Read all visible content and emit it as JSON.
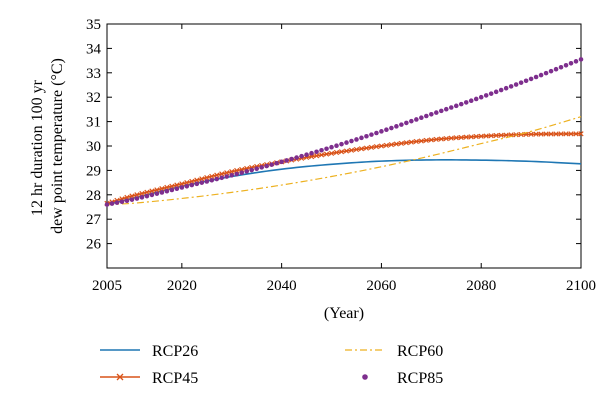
{
  "chart_data": {
    "type": "line",
    "xlabel": "(Year)",
    "ylabel": [
      "12 hr duration 100 yr",
      "dew point temperature (°C)"
    ],
    "xlim": [
      2005,
      2100
    ],
    "ylim": [
      25,
      35
    ],
    "xticks": [
      2005,
      2020,
      2040,
      2060,
      2080,
      2100
    ],
    "yticks": [
      26,
      27,
      28,
      29,
      30,
      31,
      32,
      33,
      34,
      35
    ],
    "grid": false,
    "legend_position": "bottom",
    "series": [
      {
        "name": "RCP26",
        "style": "solid",
        "marker": "none",
        "color": "#1f77b4",
        "x": [
          2005,
          2010,
          2020,
          2030,
          2040,
          2050,
          2060,
          2070,
          2080,
          2090,
          2100
        ],
        "y": [
          27.6,
          27.85,
          28.35,
          28.75,
          29.05,
          29.25,
          29.38,
          29.43,
          29.42,
          29.37,
          29.27
        ]
      },
      {
        "name": "RCP45",
        "style": "solid",
        "marker": "x",
        "color": "#d95319",
        "x": [
          2005,
          2010,
          2020,
          2030,
          2040,
          2050,
          2060,
          2070,
          2080,
          2090,
          2100
        ],
        "y": [
          27.65,
          27.95,
          28.45,
          28.95,
          29.35,
          29.7,
          30.0,
          30.25,
          30.4,
          30.48,
          30.5
        ]
      },
      {
        "name": "RCP60",
        "style": "dashdot",
        "marker": "none",
        "color": "#edb120",
        "x": [
          2005,
          2010,
          2020,
          2030,
          2040,
          2050,
          2060,
          2070,
          2080,
          2090,
          2100
        ],
        "y": [
          27.6,
          27.65,
          27.85,
          28.1,
          28.4,
          28.75,
          29.15,
          29.6,
          30.1,
          30.6,
          31.2
        ]
      },
      {
        "name": "RCP85",
        "style": "none",
        "marker": "dot",
        "color": "#7e2f8e",
        "x": [
          2005,
          2010,
          2020,
          2030,
          2040,
          2050,
          2060,
          2070,
          2080,
          2090,
          2100
        ],
        "y": [
          27.6,
          27.8,
          28.3,
          28.8,
          29.35,
          29.95,
          30.6,
          31.3,
          32.0,
          32.75,
          33.55
        ]
      }
    ]
  }
}
